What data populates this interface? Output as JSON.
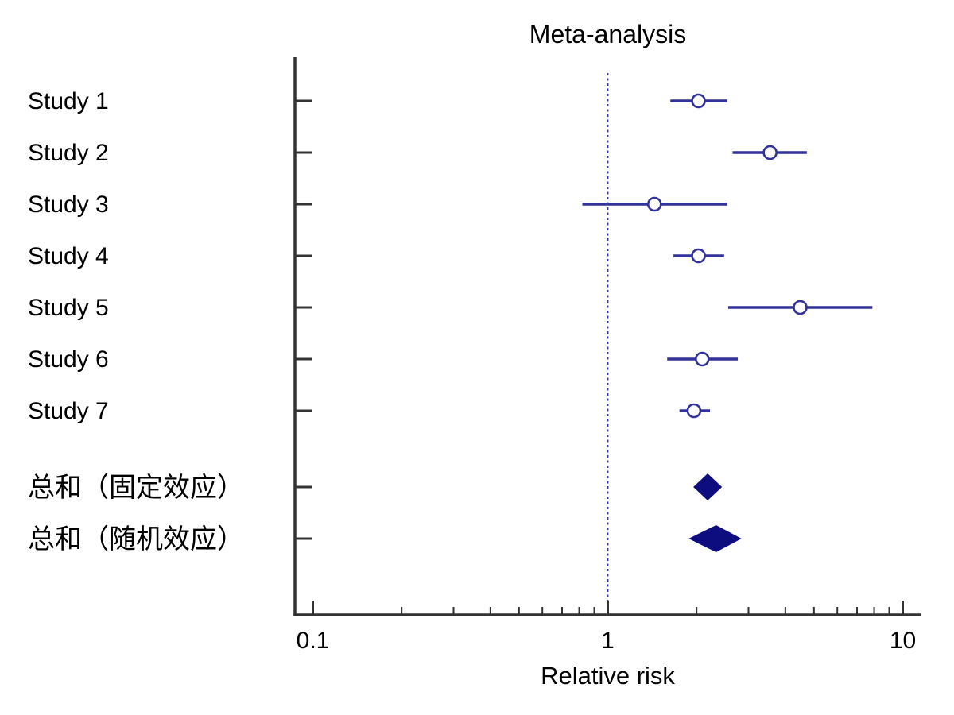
{
  "figure": {
    "title": "Meta-analysis",
    "xlabel": "Relative risk"
  },
  "colors": {
    "background": "#FFFFFF",
    "ci_line": "#32329B",
    "marker_fill": "#FFFFFF",
    "diamond": "#0D0D80",
    "reference_line": "#32329B",
    "axis": "#333333",
    "text": "#000000"
  },
  "chart_data": {
    "type": "scatter",
    "subtype": "forest-plot",
    "title": "Meta-analysis",
    "xlabel": "Relative risk",
    "x_scale": "log10",
    "x_range": [
      0.1,
      10
    ],
    "x_major_ticks": [
      0.1,
      1,
      10
    ],
    "x_major_tick_labels": [
      "0.1",
      "1",
      "10"
    ],
    "x_minor_ticks": [
      0.2,
      0.3,
      0.4,
      0.5,
      0.6,
      0.7,
      0.8,
      0.9,
      2,
      3,
      4,
      5,
      6,
      7,
      8,
      9
    ],
    "reference_line_x": 1,
    "grid": false,
    "legend": "none",
    "studies": [
      {
        "label": "Study 1",
        "rr": 2.03,
        "ci": [
          1.63,
          2.54
        ]
      },
      {
        "label": "Study 2",
        "rr": 3.55,
        "ci": [
          2.65,
          4.73
        ]
      },
      {
        "label": "Study 3",
        "rr": 1.44,
        "ci": [
          0.82,
          2.54
        ]
      },
      {
        "label": "Study 4",
        "rr": 2.03,
        "ci": [
          1.67,
          2.48
        ]
      },
      {
        "label": "Study 5",
        "rr": 4.49,
        "ci": [
          2.56,
          7.89
        ]
      },
      {
        "label": "Study 6",
        "rr": 2.09,
        "ci": [
          1.59,
          2.76
        ]
      },
      {
        "label": "Study 7",
        "rr": 1.96,
        "ci": [
          1.75,
          2.22
        ]
      }
    ],
    "summaries": [
      {
        "label": "总和（固定效应）",
        "model": "fixed",
        "rr": 2.18,
        "ci": [
          1.95,
          2.44
        ]
      },
      {
        "label": "总和（随机效应）",
        "model": "random",
        "rr": 2.33,
        "ci": [
          1.88,
          2.84
        ]
      }
    ]
  }
}
